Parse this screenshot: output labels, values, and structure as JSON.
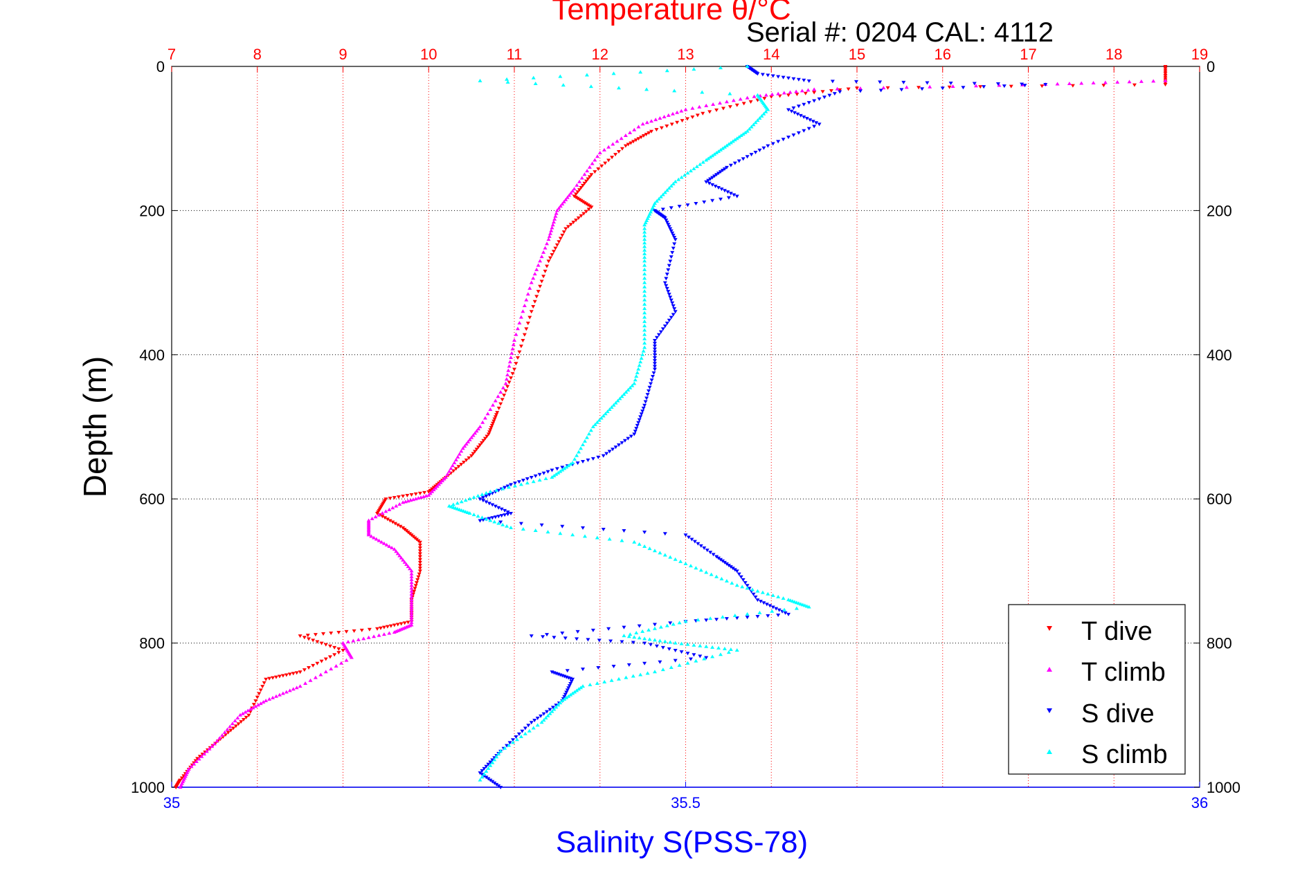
{
  "chart_data": {
    "type": "scatter",
    "title": "Temperature θ/°C",
    "subtitle": "Serial #: 0204  CAL: 4112",
    "xlabel": "Salinity S(PSS-78)",
    "ylabel": "Depth (m)",
    "x_top": {
      "label": "Temperature θ/°C",
      "range": [
        7,
        19
      ],
      "ticks": [
        "7",
        "8",
        "9",
        "10",
        "11",
        "12",
        "13",
        "14",
        "15",
        "16",
        "17",
        "18",
        "19"
      ]
    },
    "x_bottom": {
      "label": "Salinity S(PSS-78)",
      "range": [
        35,
        36
      ],
      "ticks": [
        "35",
        "35.5",
        "36"
      ]
    },
    "y": {
      "label": "Depth (m)",
      "range": [
        0,
        1000
      ],
      "reversed": true,
      "ticks": [
        "0",
        "200",
        "400",
        "600",
        "800",
        "1000"
      ]
    },
    "grid": true,
    "legend": {
      "position": "bottom-right"
    },
    "colors": {
      "t_dive": "#ff0000",
      "t_climb": "#ff00ff",
      "s_dive": "#0000ff",
      "s_climb": "#00ffff",
      "top_axis": "#ff0000",
      "bottom_axis": "#0000ff"
    },
    "series": [
      {
        "name": "T dive",
        "axis": "temperature",
        "color": "#ff0000",
        "points": [
          [
            18.6,
            0
          ],
          [
            18.6,
            25
          ],
          [
            15,
            30
          ],
          [
            14,
            42
          ],
          [
            13.2,
            65
          ],
          [
            12.6,
            90
          ],
          [
            12.3,
            110
          ],
          [
            11.9,
            150
          ],
          [
            11.7,
            180
          ],
          [
            11.9,
            195
          ],
          [
            11.6,
            225
          ],
          [
            11.4,
            270
          ],
          [
            11.2,
            340
          ],
          [
            11,
            420
          ],
          [
            10.8,
            480
          ],
          [
            10.7,
            510
          ],
          [
            10.5,
            540
          ],
          [
            10.2,
            570
          ],
          [
            10,
            590
          ],
          [
            9.5,
            600
          ],
          [
            9.4,
            620
          ],
          [
            9.7,
            640
          ],
          [
            9.9,
            660
          ],
          [
            9.9,
            700
          ],
          [
            9.8,
            740
          ],
          [
            9.8,
            770
          ],
          [
            9.4,
            780
          ],
          [
            8.5,
            790
          ],
          [
            9,
            810
          ],
          [
            8.5,
            840
          ],
          [
            8.1,
            850
          ],
          [
            7.9,
            900
          ],
          [
            7.6,
            930
          ],
          [
            7.3,
            960
          ],
          [
            7.1,
            990
          ],
          [
            7.05,
            1000
          ]
        ]
      },
      {
        "name": "T climb",
        "axis": "temperature",
        "color": "#ff00ff",
        "points": [
          [
            18.6,
            20
          ],
          [
            17.2,
            25
          ],
          [
            14.5,
            32
          ],
          [
            13.8,
            42
          ],
          [
            13,
            60
          ],
          [
            12.5,
            80
          ],
          [
            12,
            120
          ],
          [
            11.7,
            170
          ],
          [
            11.5,
            200
          ],
          [
            11.4,
            240
          ],
          [
            11.2,
            300
          ],
          [
            11,
            380
          ],
          [
            10.9,
            440
          ],
          [
            10.6,
            500
          ],
          [
            10.4,
            530
          ],
          [
            10.2,
            570
          ],
          [
            10,
            595
          ],
          [
            9.7,
            605
          ],
          [
            9.3,
            630
          ],
          [
            9.3,
            650
          ],
          [
            9.6,
            670
          ],
          [
            9.8,
            700
          ],
          [
            9.8,
            740
          ],
          [
            9.8,
            775
          ],
          [
            9.6,
            785
          ],
          [
            9,
            800
          ],
          [
            9.1,
            820
          ],
          [
            8.5,
            860
          ],
          [
            8.1,
            880
          ],
          [
            7.8,
            900
          ],
          [
            7.5,
            940
          ],
          [
            7.2,
            975
          ],
          [
            7.1,
            1000
          ]
        ]
      },
      {
        "name": "S dive",
        "axis": "salinity",
        "color": "#0000ff",
        "points": [
          [
            35.56,
            0
          ],
          [
            35.57,
            10
          ],
          [
            35.62,
            20
          ],
          [
            35.85,
            25
          ],
          [
            35.65,
            35
          ],
          [
            35.6,
            60
          ],
          [
            35.63,
            80
          ],
          [
            35.58,
            110
          ],
          [
            35.54,
            140
          ],
          [
            35.52,
            160
          ],
          [
            35.55,
            180
          ],
          [
            35.47,
            200
          ],
          [
            35.48,
            210
          ],
          [
            35.49,
            240
          ],
          [
            35.48,
            300
          ],
          [
            35.49,
            340
          ],
          [
            35.47,
            380
          ],
          [
            35.47,
            420
          ],
          [
            35.46,
            470
          ],
          [
            35.45,
            510
          ],
          [
            35.42,
            540
          ],
          [
            35.37,
            560
          ],
          [
            35.33,
            580
          ],
          [
            35.3,
            600
          ],
          [
            35.33,
            620
          ],
          [
            35.3,
            630
          ],
          [
            35.5,
            650
          ],
          [
            35.53,
            680
          ],
          [
            35.55,
            700
          ],
          [
            35.57,
            740
          ],
          [
            35.6,
            760
          ],
          [
            35.5,
            770
          ],
          [
            35.35,
            790
          ],
          [
            35.46,
            800
          ],
          [
            35.52,
            820
          ],
          [
            35.37,
            840
          ],
          [
            35.39,
            850
          ],
          [
            35.38,
            880
          ],
          [
            35.35,
            910
          ],
          [
            35.32,
            950
          ],
          [
            35.3,
            980
          ],
          [
            35.32,
            1000
          ]
        ]
      },
      {
        "name": "S climb",
        "axis": "salinity",
        "color": "#00ffff",
        "points": [
          [
            35.56,
            0
          ],
          [
            35.3,
            20
          ],
          [
            35.57,
            40
          ],
          [
            35.58,
            60
          ],
          [
            35.56,
            90
          ],
          [
            35.54,
            110
          ],
          [
            35.52,
            130
          ],
          [
            35.49,
            160
          ],
          [
            35.47,
            190
          ],
          [
            35.46,
            220
          ],
          [
            35.46,
            270
          ],
          [
            35.46,
            330
          ],
          [
            35.46,
            390
          ],
          [
            35.45,
            440
          ],
          [
            35.43,
            470
          ],
          [
            35.41,
            500
          ],
          [
            35.39,
            550
          ],
          [
            35.37,
            570
          ],
          [
            35.31,
            590
          ],
          [
            35.27,
            610
          ],
          [
            35.29,
            620
          ],
          [
            35.33,
            640
          ],
          [
            35.45,
            660
          ],
          [
            35.5,
            690
          ],
          [
            35.55,
            720
          ],
          [
            35.6,
            740
          ],
          [
            35.62,
            750
          ],
          [
            35.5,
            770
          ],
          [
            35.44,
            790
          ],
          [
            35.49,
            800
          ],
          [
            35.55,
            810
          ],
          [
            35.47,
            840
          ],
          [
            35.4,
            860
          ],
          [
            35.38,
            880
          ],
          [
            35.36,
            910
          ],
          [
            35.32,
            950
          ],
          [
            35.3,
            990
          ]
        ]
      }
    ]
  }
}
